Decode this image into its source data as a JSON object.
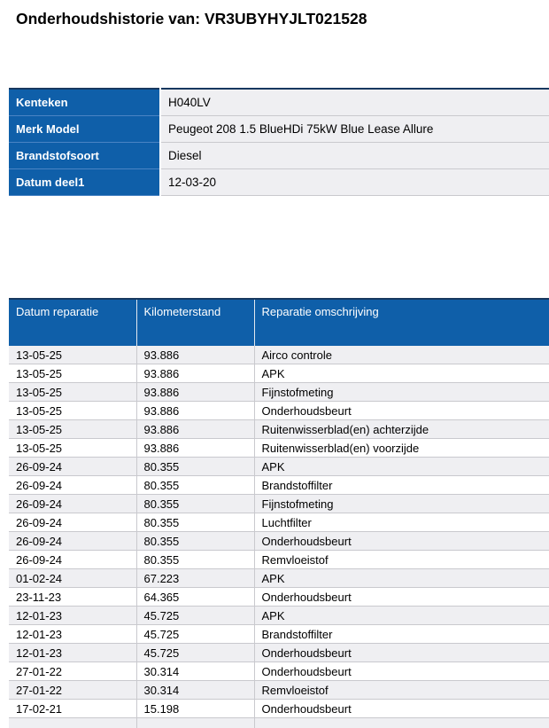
{
  "page": {
    "title": "Onderhoudshistorie van: VR3UBYHYJLT021528"
  },
  "colors": {
    "header_blue": "#0F5FA9",
    "table_top_border": "#17385F",
    "row_gray": "#EFEFF2",
    "border_gray": "#C9C9CE"
  },
  "vehicle_info": {
    "rows": [
      {
        "label": "Kenteken",
        "value": "H040LV"
      },
      {
        "label": "Merk Model",
        "value": "Peugeot 208 1.5 BlueHDi 75kW Blue Lease Allure"
      },
      {
        "label": "Brandstofsoort",
        "value": "Diesel"
      },
      {
        "label": "Datum deel1",
        "value": "12-03-20"
      }
    ]
  },
  "history_table": {
    "headers": [
      "Datum reparatie",
      "Kilometerstand",
      "Reparatie omschrijving"
    ],
    "rows": [
      {
        "date": "13-05-25",
        "km": "93.886",
        "description": "Airco controle"
      },
      {
        "date": "13-05-25",
        "km": "93.886",
        "description": "APK"
      },
      {
        "date": "13-05-25",
        "km": "93.886",
        "description": "Fijnstofmeting"
      },
      {
        "date": "13-05-25",
        "km": "93.886",
        "description": "Onderhoudsbeurt"
      },
      {
        "date": "13-05-25",
        "km": "93.886",
        "description": "Ruitenwisserblad(en) achterzijde"
      },
      {
        "date": "13-05-25",
        "km": "93.886",
        "description": "Ruitenwisserblad(en) voorzijde"
      },
      {
        "date": "26-09-24",
        "km": "80.355",
        "description": "APK"
      },
      {
        "date": "26-09-24",
        "km": "80.355",
        "description": "Brandstoffilter"
      },
      {
        "date": "26-09-24",
        "km": "80.355",
        "description": "Fijnstofmeting"
      },
      {
        "date": "26-09-24",
        "km": "80.355",
        "description": "Luchtfilter"
      },
      {
        "date": "26-09-24",
        "km": "80.355",
        "description": "Onderhoudsbeurt"
      },
      {
        "date": "26-09-24",
        "km": "80.355",
        "description": "Remvloeistof"
      },
      {
        "date": "01-02-24",
        "km": "67.223",
        "description": "APK"
      },
      {
        "date": "23-11-23",
        "km": "64.365",
        "description": "Onderhoudsbeurt"
      },
      {
        "date": "12-01-23",
        "km": "45.725",
        "description": "APK"
      },
      {
        "date": "12-01-23",
        "km": "45.725",
        "description": "Brandstoffilter"
      },
      {
        "date": "12-01-23",
        "km": "45.725",
        "description": "Onderhoudsbeurt"
      },
      {
        "date": "27-01-22",
        "km": "30.314",
        "description": "Onderhoudsbeurt"
      },
      {
        "date": "27-01-22",
        "km": "30.314",
        "description": "Remvloeistof"
      },
      {
        "date": "17-02-21",
        "km": "15.198",
        "description": "Onderhoudsbeurt"
      },
      {
        "date": "",
        "km": "",
        "description": ""
      }
    ]
  }
}
